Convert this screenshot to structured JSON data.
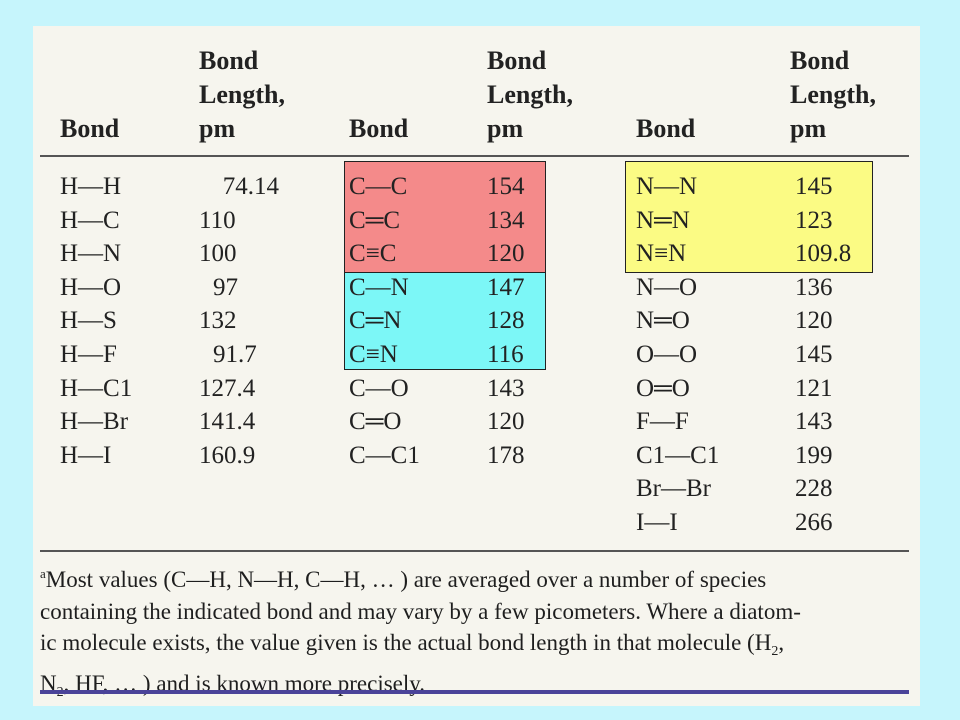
{
  "colors": {
    "page_background": "#c6f5fc",
    "sheet_background": "#f6f5ee",
    "highlight_carbon_carbon": "#f48a8a",
    "highlight_carbon_nitrogen": "#7cf7f7",
    "highlight_nitrogen_nitrogen": "#fbfb84",
    "bottom_rule": "#4a4399"
  },
  "header": {
    "bond_1": "Bond",
    "length_1_line1": "Bond",
    "length_1_line2": "Length,",
    "length_1_line3": "pm",
    "bond_2": "Bond",
    "length_2_line1": "Bond",
    "length_2_line2": "Length,",
    "length_2_line3": "pm",
    "bond_3": "Bond",
    "length_3_line1": "Bond",
    "length_3_line2": "Length,",
    "length_3_line3": "pm"
  },
  "table": {
    "col1": [
      {
        "bond": "H—H",
        "length": "74.14"
      },
      {
        "bond": "H—C",
        "length": "110"
      },
      {
        "bond": "H—N",
        "length": "100"
      },
      {
        "bond": "H—O",
        "length": "97"
      },
      {
        "bond": "H—S",
        "length": "132"
      },
      {
        "bond": "H—F",
        "length": "91.7"
      },
      {
        "bond": "H—C1",
        "length": "127.4"
      },
      {
        "bond": "H—Br",
        "length": "141.4"
      },
      {
        "bond": "H—I",
        "length": "160.9"
      }
    ],
    "col2": [
      {
        "bond": "C—C",
        "length": "154"
      },
      {
        "bond": "C═C",
        "length": "134"
      },
      {
        "bond": "C≡C",
        "length": "120"
      },
      {
        "bond": "C—N",
        "length": "147"
      },
      {
        "bond": "C═N",
        "length": "128"
      },
      {
        "bond": "C≡N",
        "length": "116"
      },
      {
        "bond": "C—O",
        "length": "143"
      },
      {
        "bond": "C═O",
        "length": "120"
      },
      {
        "bond": "C—C1",
        "length": "178"
      }
    ],
    "col3": [
      {
        "bond": "N—N",
        "length": "145"
      },
      {
        "bond": "N═N",
        "length": "123"
      },
      {
        "bond": "N≡N",
        "length": "109.8"
      },
      {
        "bond": "N—O",
        "length": "136"
      },
      {
        "bond": "N═O",
        "length": "120"
      },
      {
        "bond": "O—O",
        "length": "145"
      },
      {
        "bond": "O═O",
        "length": "121"
      },
      {
        "bond": "F—F",
        "length": "143"
      },
      {
        "bond": "C1—C1",
        "length": "199"
      },
      {
        "bond": "Br—Br",
        "length": "228"
      },
      {
        "bond": "I—I",
        "length": "266"
      }
    ]
  },
  "footnote": {
    "marker": "a",
    "line1": "Most values (C—H, N—H, C—H, … ) are averaged over a number of species",
    "line2": "containing the indicated bond and may vary by a few picometers. Where a diatom-",
    "line3_pre": "ic molecule exists, the value given is the actual bond length in that molecule (H",
    "line3_sub": "2",
    "line3_post": ",",
    "line4_pre": "N",
    "line4_sub": "2",
    "line4_post": ", HF, … ) and is known more precisely."
  }
}
